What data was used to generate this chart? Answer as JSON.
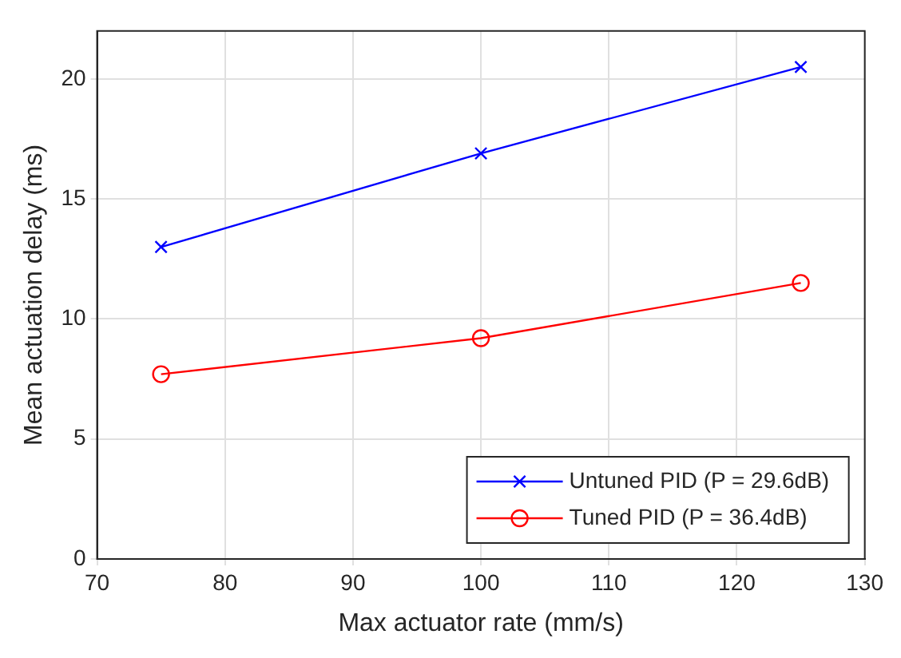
{
  "chart_data": {
    "type": "line",
    "xlabel": "Max actuator rate (mm/s)",
    "ylabel": "Mean actuation delay (ms)",
    "x": [
      75,
      100,
      125
    ],
    "series": [
      {
        "name": "Untuned PID (P = 29.6dB)",
        "color": "#0000ff",
        "marker": "cross",
        "values": [
          13.0,
          16.9,
          20.5
        ]
      },
      {
        "name": "Tuned PID (P = 36.4dB)",
        "color": "#ff0000",
        "marker": "circle",
        "values": [
          7.7,
          9.2,
          11.5
        ]
      }
    ],
    "xlim": [
      70,
      130
    ],
    "xticks": [
      70,
      80,
      90,
      100,
      110,
      120,
      130
    ],
    "ylim": [
      0,
      22
    ],
    "yticks": [
      0,
      5,
      10,
      15,
      20
    ],
    "grid": true,
    "legend": "bottom right",
    "line_style": "solid"
  }
}
